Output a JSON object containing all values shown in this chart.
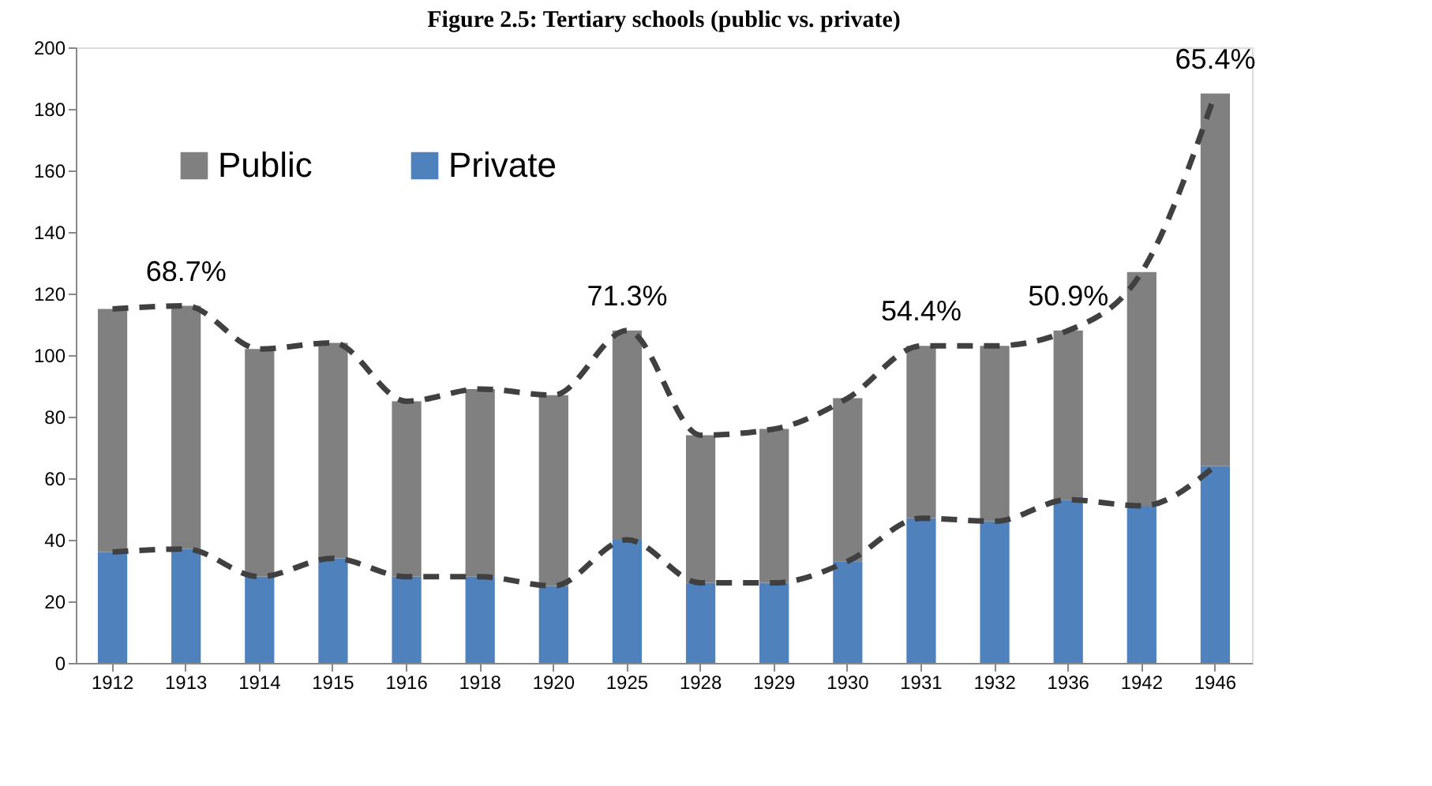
{
  "chart_data": {
    "type": "bar",
    "title": "Figure 2.5: Tertiary schools (public vs. private)",
    "categories": [
      "1912",
      "1913",
      "1914",
      "1915",
      "1916",
      "1918",
      "1920",
      "1925",
      "1928",
      "1929",
      "1930",
      "1931",
      "1932",
      "1936",
      "1942",
      "1946"
    ],
    "stacked": true,
    "series": [
      {
        "name": "Private",
        "color": "#4f81bd",
        "values": [
          36,
          37,
          28,
          34,
          28,
          28,
          25,
          40,
          26,
          26,
          33,
          47,
          46,
          53,
          51,
          64
        ]
      },
      {
        "name": "Public",
        "color": "#808080",
        "values": [
          79,
          79,
          74,
          70,
          57,
          61,
          62,
          68,
          48,
          50,
          53,
          56,
          57,
          55,
          76,
          121
        ]
      },
      {
        "type": "line",
        "color": "#404040",
        "line_style": "dashed",
        "values": [
          115,
          116,
          102,
          104,
          85,
          89,
          87,
          108,
          74,
          76,
          86,
          103,
          103,
          108,
          127,
          185
        ]
      },
      {
        "type": "line",
        "color": "#404040",
        "line_style": "dashed",
        "values": [
          36,
          37,
          28,
          34,
          28,
          28,
          25,
          40,
          26,
          26,
          33,
          47,
          46,
          53,
          51,
          64
        ]
      }
    ],
    "ylim": [
      0,
      200
    ],
    "yticks": [
      0,
      20,
      40,
      60,
      80,
      100,
      120,
      140,
      160,
      180,
      200
    ],
    "grid": false,
    "legend": "top left",
    "annotations": [
      {
        "text": "68.7%",
        "x": "1913",
        "y": 116
      },
      {
        "text": "71.3%",
        "x": "1925",
        "y": 108
      },
      {
        "text": "54.4%",
        "x": "1931",
        "y": 103
      },
      {
        "text": "50.9%",
        "x": "1936",
        "y": 108
      },
      {
        "text": "65.4%",
        "x": "1946",
        "y": 185
      }
    ]
  }
}
